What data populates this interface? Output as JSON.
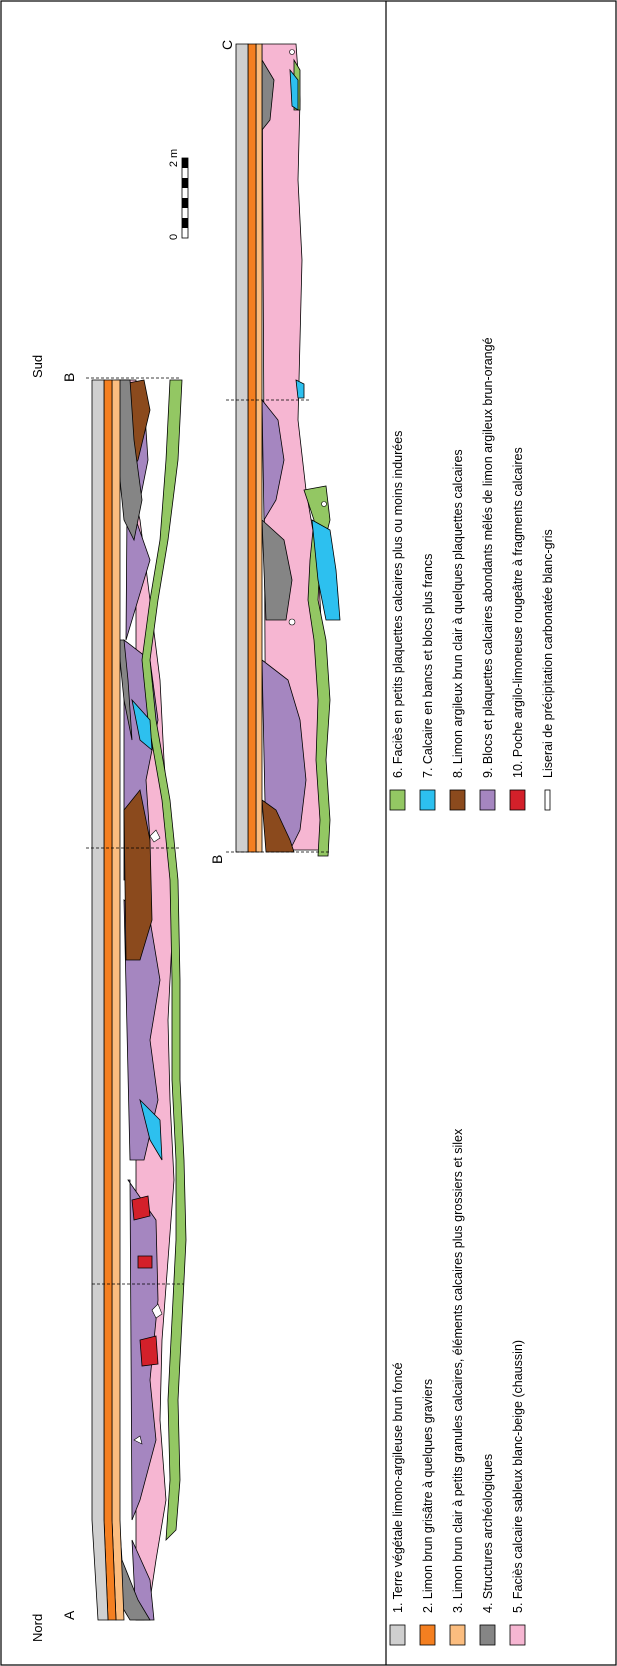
{
  "sections": {
    "nord": "Nord",
    "sud": "Sud",
    "a": "A",
    "b_top": "B",
    "b_bottom": "B",
    "c": "C"
  },
  "scale": {
    "zero": "0",
    "two": "2 m"
  },
  "legend": [
    {
      "text": "1. Terre végétale limono-argileuse brun foncé",
      "color": "#cfcfcf"
    },
    {
      "text": "2. Limon brun grisâtre à quelques graviers",
      "color": "#f47f20"
    },
    {
      "text": "3. Limon brun clair à petits granules calcaires, éléments calcaires plus grossiers et silex",
      "color": "#fbbd7f"
    },
    {
      "text": "4.  Structures archéologiques",
      "color": "#858585"
    },
    {
      "text": "5. Faciès calcaire sableux blanc-beige (chaussin)",
      "color": "#f6b6d2"
    },
    {
      "text": "6. Faciès en petits plaquettes calcaires plus ou moins indurées",
      "color": "#93c763"
    },
    {
      "text": "7. Calcaire en bancs et blocs plus francs",
      "color": "#2dc0ef"
    },
    {
      "text": "8. Limon argileux brun clair à quelques plaquettes calcaires",
      "color": "#8b4a1d"
    },
    {
      "text": "9. Blocs et plaquettes calcaires abondants mêlés de limon argileux brun-orangé",
      "color": "#a586c0"
    },
    {
      "text": "10. Poche argilo-limoneuse rougeâtre à fragments calcaires",
      "color": "#d3202a"
    },
    {
      "text": "Liserai de précipitation carbonatée blanc-gris",
      "color": "#ffffff"
    }
  ]
}
